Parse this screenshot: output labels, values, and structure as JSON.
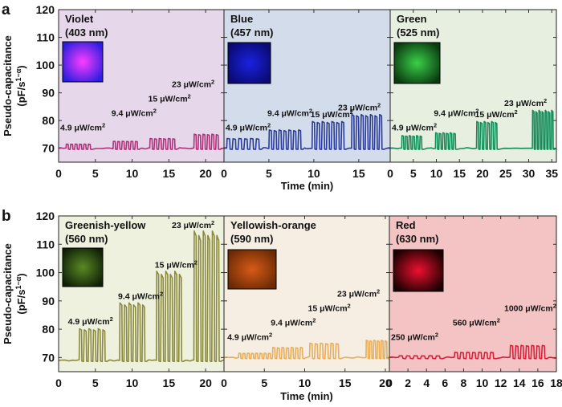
{
  "chart_data": [
    {
      "figure_label": "a",
      "type": "line",
      "ylabel": "Pseudo-capacitance",
      "ylabel_units": "(pF/s^(1-α))",
      "xlabel": "Time (min)",
      "ylim": [
        65,
        120
      ],
      "yticks": [
        70,
        80,
        90,
        100,
        110,
        120
      ],
      "panels": [
        {
          "name": "Violet",
          "wavelength": "(403 nm)",
          "color": "#b0307a",
          "background": "#e6d8ea",
          "inset_colors": [
            "#2b1ee0",
            "#ff3cff"
          ],
          "xlim": [
            0,
            22.5
          ],
          "xticks": [
            0,
            5,
            10,
            15,
            20
          ],
          "baseline": 70,
          "pulse_trains": [
            {
              "label": "4.9 μW/cm²",
              "start": 1.0,
              "end": 4.6,
              "cycles": 6,
              "peak": 71.5
            },
            {
              "label": "9.4 μW/cm²",
              "start": 7.4,
              "end": 11.0,
              "cycles": 6,
              "peak": 72.5
            },
            {
              "label": "15 μW/cm²",
              "start": 12.4,
              "end": 16.1,
              "cycles": 6,
              "peak": 73.5
            },
            {
              "label": "23 μW/cm²",
              "start": 18.4,
              "end": 22.0,
              "cycles": 6,
              "peak": 75
            }
          ]
        },
        {
          "name": "Blue",
          "wavelength": "(457 nm)",
          "color": "#2a3a98",
          "background": "#d3dcea",
          "inset_colors": [
            "#0a0a70",
            "#1a22e0"
          ],
          "xlim": [
            0,
            18.5
          ],
          "xticks": [
            0,
            5,
            10,
            15
          ],
          "baseline": 70,
          "pulse_trains": [
            {
              "label": "4.9 μW/cm²",
              "start": 0.3,
              "end": 4.2,
              "cycles": 6,
              "peak": 73.5
            },
            {
              "label": "9.4 μW/cm²",
              "start": 5.0,
              "end": 8.8,
              "cycles": 7,
              "peak": 76.5
            },
            {
              "label": "15 μW/cm²",
              "start": 9.8,
              "end": 13.6,
              "cycles": 7,
              "peak": 79.5
            },
            {
              "label": "23 μW/cm²",
              "start": 14.2,
              "end": 17.8,
              "cycles": 7,
              "peak": 82
            }
          ]
        },
        {
          "name": "Green",
          "wavelength": "(525 nm)",
          "color": "#138c5a",
          "background": "#e6efe0",
          "inset_colors": [
            "#0a3a10",
            "#3ad048"
          ],
          "xlim": [
            0,
            36
          ],
          "xticks": [
            0,
            5,
            10,
            15,
            20,
            25,
            30,
            35
          ],
          "baseline": 70,
          "pulse_trains": [
            {
              "label": "4.9 μW/cm²",
              "start": 2.5,
              "end": 7.2,
              "cycles": 6,
              "peak": 74.5
            },
            {
              "label": "9.4 μW/cm²",
              "start": 9.8,
              "end": 14.5,
              "cycles": 6,
              "peak": 75.5
            },
            {
              "label": "15 μW/cm²",
              "start": 18.7,
              "end": 23.5,
              "cycles": 6,
              "peak": 79.5
            },
            {
              "label": "23 μW/cm²",
              "start": 30.8,
              "end": 35.6,
              "cycles": 7,
              "peak": 83.5
            }
          ]
        }
      ]
    },
    {
      "figure_label": "b",
      "type": "line",
      "ylabel": "Pseudo-capacitance",
      "ylabel_units": "(pF/s^(1-α))",
      "xlabel": "Time (min)",
      "ylim": [
        65,
        120
      ],
      "yticks": [
        70,
        80,
        90,
        100,
        110,
        120
      ],
      "panels": [
        {
          "name": "Greenish-yellow",
          "wavelength": "(560 nm)",
          "color": "#8a8a3c",
          "background": "#eff1df",
          "inset_colors": [
            "#102008",
            "#5a8a22"
          ],
          "xlim": [
            0,
            22.5
          ],
          "xticks": [
            0,
            5,
            10,
            15,
            20
          ],
          "baseline": 69,
          "pulse_trains": [
            {
              "label": "4.9 μW/cm²",
              "start": 2.8,
              "end": 6.6,
              "cycles": 6,
              "peak": 80
            },
            {
              "label": "9.4 μW/cm²",
              "start": 8.3,
              "end": 12.0,
              "cycles": 6,
              "peak": 89
            },
            {
              "label": "15 μW/cm²",
              "start": 13.3,
              "end": 17.0,
              "cycles": 6,
              "peak": 100
            },
            {
              "label": "23 μW/cm²",
              "start": 18.4,
              "end": 22.1,
              "cycles": 6,
              "peak": 114
            }
          ]
        },
        {
          "name": "Yellowish-orange",
          "wavelength": "(590 nm)",
          "color": "#e8ae5a",
          "background": "#f6eee2",
          "inset_colors": [
            "#6a2a05",
            "#d85a18"
          ],
          "xlim": [
            0,
            20.5
          ],
          "xticks": [
            0,
            5,
            10,
            15,
            20
          ],
          "baseline": 70,
          "pulse_trains": [
            {
              "label": "4.9 μW/cm²",
              "start": 1.8,
              "end": 6.0,
              "cycles": 8,
              "peak": 71.5
            },
            {
              "label": "9.4 μW/cm²",
              "start": 6.0,
              "end": 10.0,
              "cycles": 7,
              "peak": 73.5
            },
            {
              "label": "15 μW/cm²",
              "start": 10.6,
              "end": 14.5,
              "cycles": 6,
              "peak": 75
            },
            {
              "label": "23 μW/cm²",
              "start": 17.6,
              "end": 20.4,
              "cycles": 6,
              "peak": 76
            }
          ]
        },
        {
          "name": "Red",
          "wavelength": "(630 nm)",
          "color": "#d8203a",
          "background": "#f4c4c4",
          "inset_colors": [
            "#1a0000",
            "#ee1030"
          ],
          "xlim": [
            0,
            18
          ],
          "xticks": [
            0,
            2,
            4,
            6,
            8,
            10,
            12,
            14,
            16,
            18
          ],
          "baseline": 70,
          "pulse_trains": [
            {
              "label": "250 μW/cm²",
              "start": 1.0,
              "end": 5.8,
              "cycles": 6,
              "peak": 70.6
            },
            {
              "label": "560 μW/cm²",
              "start": 7.0,
              "end": 11.5,
              "cycles": 7,
              "peak": 71.8
            },
            {
              "label": "1000 μW/cm²",
              "start": 13.0,
              "end": 17.0,
              "cycles": 7,
              "peak": 74.2
            }
          ]
        }
      ]
    }
  ]
}
